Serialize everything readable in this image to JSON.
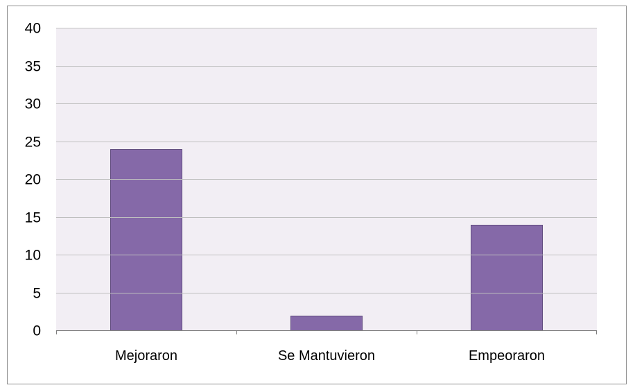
{
  "chart_data": {
    "type": "bar",
    "categories": [
      "Mejoraron",
      "Se Mantuvieron",
      "Empeoraron"
    ],
    "values": [
      24,
      2,
      14
    ],
    "title": "",
    "xlabel": "",
    "ylabel": "",
    "ylim": [
      0,
      40
    ],
    "ytick_step": 5,
    "grid": true,
    "legend": false,
    "colors": {
      "bar_fill": "#8569a8",
      "bar_border": "#5f4a7d",
      "plot_background": "#f2eef4",
      "gridline": "#bfbfbf",
      "axis_line": "#7f7f7f",
      "frame_border": "#8c8c8c",
      "label_text": "#000000",
      "page_background": "#ffffff"
    }
  }
}
